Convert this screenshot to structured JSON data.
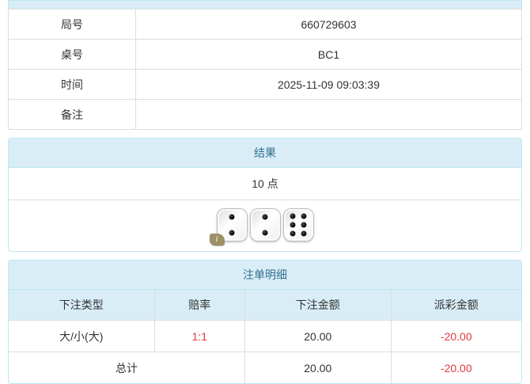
{
  "colors": {
    "panel_header_bg": "#d9edf7",
    "panel_header_text": "#31708f",
    "panel_border": "#bce8f1",
    "cell_border": "#dddddd",
    "text": "#333333",
    "negative_red": "#e4393c",
    "info_badge_bg": "#9d9066"
  },
  "info_table": {
    "rows": [
      {
        "label": "局号",
        "value": "660729603"
      },
      {
        "label": "桌号",
        "value": "BC1"
      },
      {
        "label": "时间",
        "value": "2025-11-09 09:03:39"
      },
      {
        "label": "备注",
        "value": ""
      }
    ]
  },
  "result_panel": {
    "title": "结果",
    "points": "10 点",
    "dice": [
      2,
      2,
      6
    ],
    "info_badge": "i"
  },
  "bet_panel": {
    "title": "注单明细",
    "columns": [
      "下注类型",
      "赔率",
      "下注金额",
      "派彩金额"
    ],
    "rows": [
      {
        "type": "大/小(大)",
        "odds": "1:1",
        "bet_amount": "20.00",
        "payout_amount": "-20.00"
      }
    ],
    "total": {
      "label": "总计",
      "bet_amount": "20.00",
      "payout_amount": "-20.00"
    }
  }
}
